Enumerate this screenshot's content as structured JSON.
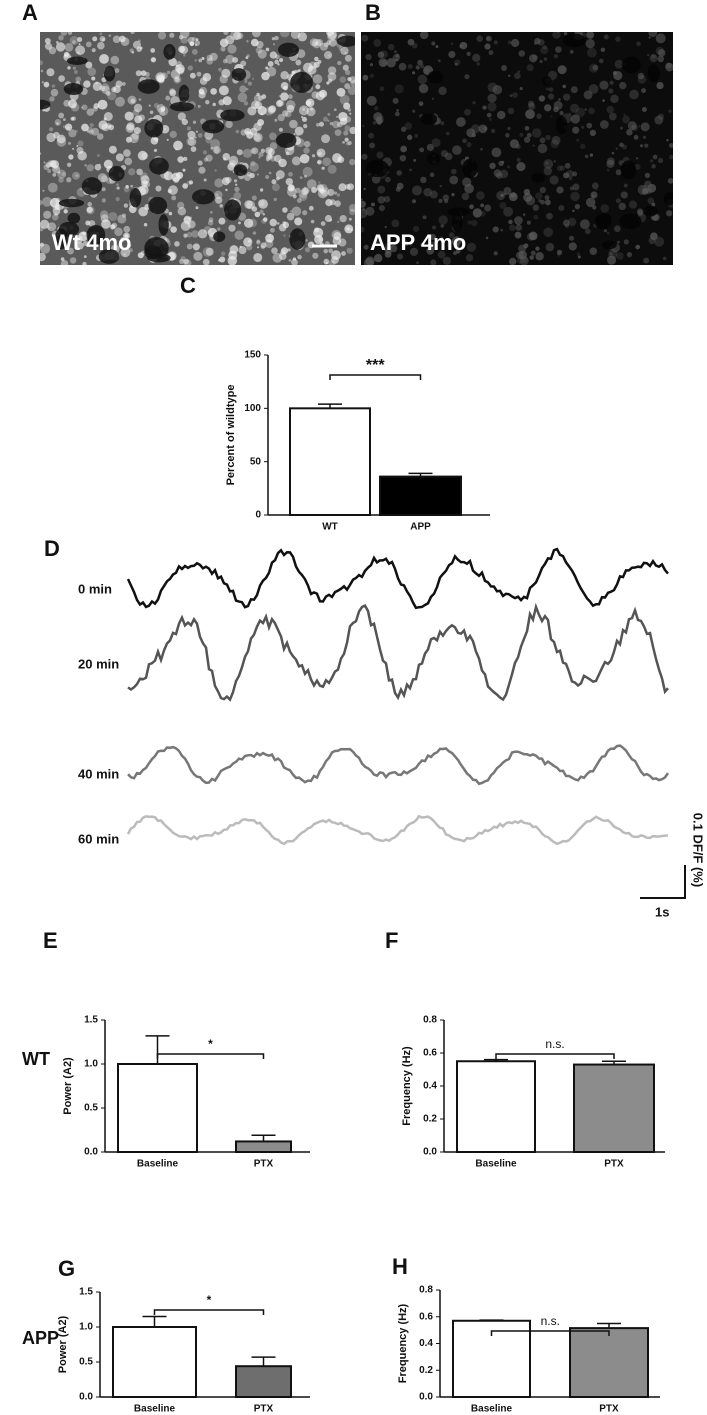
{
  "images": [
    {
      "label": "A",
      "caption": "Wt 4mo"
    },
    {
      "label": "B",
      "caption": "APP 4mo"
    }
  ],
  "traces": {
    "label": "D",
    "rows": [
      "0 min",
      "20 min",
      "40 min",
      "60 min"
    ],
    "colors": [
      "#111111",
      "#555555",
      "#777777",
      "#bbbbbb"
    ],
    "scale_y": "0.1 DF/F (%)",
    "scale_x": "1s"
  },
  "row_labels": [
    "WT",
    "APP"
  ],
  "chart_data": [
    {
      "type": "bar",
      "panel": "C",
      "ylabel": "Percent of wildtype",
      "categories": [
        "WT",
        "APP"
      ],
      "values": [
        100,
        36
      ],
      "errors": [
        4,
        3
      ],
      "colors": [
        "#ffffff",
        "#000000"
      ],
      "ylim": [
        0,
        150
      ],
      "yticks": [
        0,
        50,
        100,
        150
      ],
      "significance": "***"
    },
    {
      "type": "bar",
      "panel": "E",
      "ylabel": "Power (A2)",
      "categories": [
        "Baseline",
        "PTX"
      ],
      "values": [
        1.0,
        0.12
      ],
      "errors": [
        0.32,
        0.07
      ],
      "colors": [
        "#ffffff",
        "#8c8c8c"
      ],
      "ylim": [
        0,
        1.5
      ],
      "yticks": [
        {
          "value": 0,
          "label": "0.0"
        },
        0.5,
        {
          "value": 1,
          "label": "1.0"
        },
        1.5
      ],
      "significance": "*"
    },
    {
      "type": "bar",
      "panel": "F",
      "ylabel": "Frequency (Hz)",
      "categories": [
        "Baseline",
        "PTX"
      ],
      "values": [
        0.55,
        0.53
      ],
      "errors": [
        0.01,
        0.02
      ],
      "colors": [
        "#ffffff",
        "#8c8c8c"
      ],
      "ylim": [
        0,
        0.8
      ],
      "yticks": [
        {
          "value": 0,
          "label": "0.0"
        },
        0.2,
        0.4,
        0.6,
        0.8
      ],
      "significance": "n.s."
    },
    {
      "type": "bar",
      "panel": "G",
      "ylabel": "Power (A2)",
      "categories": [
        "Baseline",
        "PTX"
      ],
      "values": [
        1.0,
        0.44
      ],
      "errors": [
        0.15,
        0.13
      ],
      "colors": [
        "#ffffff",
        "#6e6e6e"
      ],
      "ylim": [
        0,
        1.5
      ],
      "yticks": [
        {
          "value": 0,
          "label": "0.0"
        },
        0.5,
        {
          "value": 1,
          "label": "1.0"
        },
        1.5
      ],
      "significance": "*"
    },
    {
      "type": "bar",
      "panel": "H",
      "ylabel": "Frequency (Hz)",
      "categories": [
        "Baseline",
        "PTX"
      ],
      "values": [
        0.57,
        0.515
      ],
      "errors": [
        0.005,
        0.035
      ],
      "colors": [
        "#ffffff",
        "#8c8c8c"
      ],
      "ylim": [
        0,
        0.8
      ],
      "yticks": [
        {
          "value": 0,
          "label": "0.0"
        },
        0.2,
        0.4,
        0.6,
        0.8
      ],
      "significance": "n.s."
    }
  ]
}
